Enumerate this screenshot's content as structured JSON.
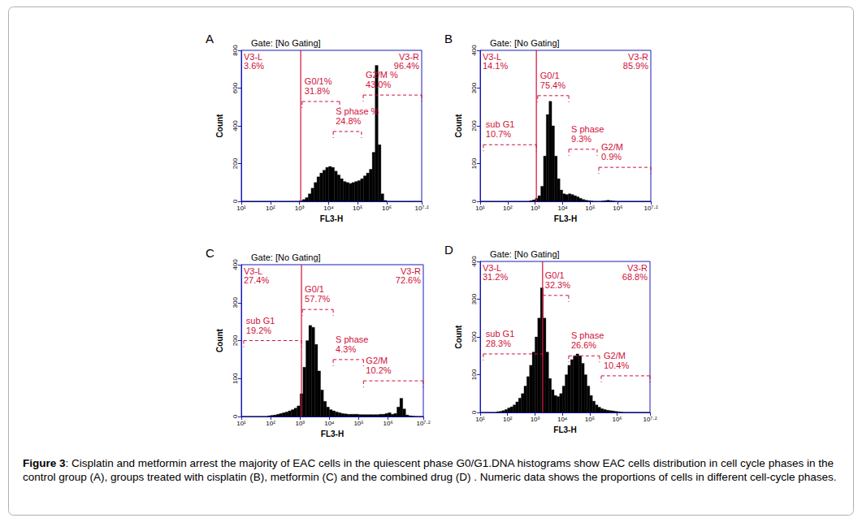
{
  "chart_data": [
    {
      "type": "histogram",
      "panel": "A",
      "title": "Gate: [No Gating]",
      "x_label": "FL3-H",
      "y_label": "Count",
      "log": "x",
      "grid": false,
      "color": "#000000",
      "xlim": [
        10,
        15850000
      ],
      "xticks": [
        {
          "value": 10,
          "label": "10¹"
        },
        {
          "value": 100,
          "label": "10²"
        },
        {
          "value": 1000,
          "label": "10³"
        },
        {
          "value": 10000,
          "label": "10⁴"
        },
        {
          "value": 100000,
          "label": "10⁵"
        },
        {
          "value": 1000000,
          "label": "10⁶"
        },
        {
          "value": 15850000,
          "label": "10⁷·²"
        }
      ],
      "ylim": [
        0,
        800
      ],
      "yticks": [
        0,
        200,
        400,
        600,
        800
      ],
      "bins": [
        10,
        12.59,
        15.85,
        19.95,
        25.12,
        31.62,
        39.81,
        50.12,
        63.1,
        79.43,
        100,
        125.9,
        158.5,
        199.5,
        251.2,
        316.2,
        398.1,
        501.2,
        631,
        794.3,
        1000,
        1259,
        1585,
        1995,
        2512,
        3162,
        3981,
        5012,
        6310,
        7943,
        10000,
        12590,
        15850,
        19950,
        25120,
        31620,
        39810,
        50120,
        63100,
        79430,
        100000,
        125900,
        158500,
        199500,
        251200,
        316200,
        398100,
        501200,
        631000,
        794300,
        1000000,
        1259000,
        1585000,
        1995000,
        2512000,
        3162000,
        3981000,
        5012000,
        6310000,
        7943000,
        10000000,
        12590000,
        15850000
      ],
      "counts": [
        0,
        0,
        0,
        0,
        0,
        0,
        0,
        0,
        0,
        0,
        0,
        0,
        0,
        0,
        0,
        0,
        0,
        0,
        0,
        0,
        3,
        10,
        20,
        40,
        70,
        100,
        130,
        150,
        165,
        180,
        185,
        180,
        160,
        140,
        120,
        105,
        100,
        95,
        100,
        105,
        110,
        120,
        135,
        150,
        170,
        260,
        720,
        300,
        40,
        5,
        0,
        0,
        0,
        0,
        0,
        0,
        0,
        0,
        0,
        0,
        0,
        0
      ],
      "gate": 1100,
      "gate_labels": [
        {
          "name": "V3-L",
          "label": "3.6%"
        },
        {
          "name": "V3-R",
          "label": "96.4%"
        }
      ],
      "regions": [
        {
          "name": "G0/1%",
          "label": "31.8%",
          "x": [
            1230,
            24000
          ],
          "y": 529
        },
        {
          "name": "S phase %",
          "label": "24.8%",
          "x": [
            14450,
            135000
          ],
          "y": 370
        },
        {
          "name": "G2/M %",
          "label": "43.0%",
          "x": [
            155000,
            15850000
          ],
          "y": 563
        }
      ]
    },
    {
      "type": "histogram",
      "panel": "B",
      "title": "Gate: [No Gating]",
      "x_label": "FL3-H",
      "y_label": "Count",
      "log": "x",
      "grid": false,
      "color": "#000000",
      "xlim": [
        10,
        15850000
      ],
      "xticks": [
        {
          "value": 10,
          "label": "10¹"
        },
        {
          "value": 100,
          "label": "10²"
        },
        {
          "value": 1000,
          "label": "10³"
        },
        {
          "value": 10000,
          "label": "10⁴"
        },
        {
          "value": 100000,
          "label": "10⁵"
        },
        {
          "value": 1000000,
          "label": "10⁶"
        },
        {
          "value": 15850000,
          "label": "10⁷·²"
        }
      ],
      "ylim": [
        0,
        400
      ],
      "yticks": [
        0,
        100,
        200,
        300,
        400
      ],
      "bins": [
        10,
        12.59,
        15.85,
        19.95,
        25.12,
        31.62,
        39.81,
        50.12,
        63.1,
        79.43,
        100,
        125.9,
        158.5,
        199.5,
        251.2,
        316.2,
        398.1,
        501.2,
        631,
        794.3,
        1000,
        1259,
        1585,
        1995,
        2512,
        3162,
        3981,
        5012,
        6310,
        7943,
        10000,
        12590,
        15850,
        19950,
        25120,
        31620,
        39810,
        50120,
        63100,
        79430,
        100000,
        125900,
        158500,
        199500,
        251200,
        316200,
        398100,
        501200,
        631000,
        794300,
        1000000,
        1259000,
        1585000,
        1995000,
        2512000,
        3162000,
        3981000,
        5012000,
        6310000,
        7943000,
        10000000,
        12590000,
        15850000
      ],
      "counts": [
        0,
        0,
        0,
        0,
        0,
        0,
        0,
        0,
        0,
        0,
        0,
        0,
        0,
        0,
        0,
        0,
        0,
        0,
        2,
        4,
        8,
        15,
        40,
        120,
        230,
        265,
        200,
        120,
        60,
        30,
        20,
        18,
        20,
        18,
        15,
        12,
        8,
        5,
        3,
        2,
        1,
        0,
        0,
        0,
        1,
        2,
        3,
        2,
        1,
        0,
        0,
        0,
        0,
        0,
        0,
        0,
        0,
        0,
        0,
        0,
        0,
        0
      ],
      "gate": 1100,
      "gate_labels": [
        {
          "name": "V3-L",
          "label": "14.1%"
        },
        {
          "name": "V3-R",
          "label": "85.9%"
        }
      ],
      "regions": [
        {
          "name": "sub G1",
          "label": "10.7%",
          "x": [
            13,
            1100
          ],
          "y": 150
        },
        {
          "name": "G0/1",
          "label": "75.4%",
          "x": [
            1230,
            16600
          ],
          "y": 280
        },
        {
          "name": "S phase",
          "label": "9.3%",
          "x": [
            16600,
            178000
          ],
          "y": 138
        },
        {
          "name": "G2/M",
          "label": "0.9%",
          "x": [
            204000,
            15850000
          ],
          "y": 90
        }
      ]
    },
    {
      "type": "histogram",
      "panel": "C",
      "title": "Gate: [No Gating]",
      "x_label": "FL3-H",
      "y_label": "Count",
      "log": "x",
      "grid": false,
      "color": "#000000",
      "xlim": [
        10,
        15850000
      ],
      "xticks": [
        {
          "value": 10,
          "label": "10¹"
        },
        {
          "value": 100,
          "label": "10²"
        },
        {
          "value": 1000,
          "label": "10³"
        },
        {
          "value": 10000,
          "label": "10⁴"
        },
        {
          "value": 100000,
          "label": "10⁵"
        },
        {
          "value": 1000000,
          "label": "10⁶"
        },
        {
          "value": 15850000,
          "label": "10⁷·²"
        }
      ],
      "ylim": [
        0,
        400
      ],
      "yticks": [
        0,
        100,
        200,
        300,
        400
      ],
      "bins": [
        10,
        12.59,
        15.85,
        19.95,
        25.12,
        31.62,
        39.81,
        50.12,
        63.1,
        79.43,
        100,
        125.9,
        158.5,
        199.5,
        251.2,
        316.2,
        398.1,
        501.2,
        631,
        794.3,
        1000,
        1259,
        1585,
        1995,
        2512,
        3162,
        3981,
        5012,
        6310,
        7943,
        10000,
        12590,
        15850,
        19950,
        25120,
        31620,
        39810,
        50120,
        63100,
        79430,
        100000,
        125900,
        158500,
        199500,
        251200,
        316200,
        398100,
        501200,
        631000,
        794300,
        1000000,
        1259000,
        1585000,
        1995000,
        2512000,
        3162000,
        3981000,
        5012000,
        6310000,
        7943000,
        10000000,
        12590000,
        15850000
      ],
      "counts": [
        0,
        0,
        0,
        0,
        0,
        0,
        0,
        0,
        0,
        2,
        3,
        4,
        6,
        8,
        10,
        12,
        15,
        18,
        22,
        28,
        60,
        130,
        200,
        240,
        235,
        190,
        120,
        70,
        40,
        25,
        18,
        15,
        12,
        10,
        8,
        7,
        6,
        6,
        6,
        6,
        5,
        5,
        5,
        5,
        5,
        5,
        5,
        6,
        6,
        8,
        10,
        6,
        8,
        25,
        48,
        20,
        4,
        2,
        1,
        0,
        0,
        0
      ],
      "gate": 1120,
      "gate_labels": [
        {
          "name": "V3-L",
          "label": "27.4%"
        },
        {
          "name": "V3-R",
          "label": "72.6%"
        }
      ],
      "regions": [
        {
          "name": "sub G1",
          "label": "19.2%",
          "x": [
            12,
            1120
          ],
          "y": 200
        },
        {
          "name": "G0/1",
          "label": "57.7%",
          "x": [
            1200,
            13500
          ],
          "y": 282
        },
        {
          "name": "S phase",
          "label": "4.3%",
          "x": [
            13500,
            145000
          ],
          "y": 150
        },
        {
          "name": "G2/M",
          "label": "10.2%",
          "x": [
            145000,
            15850000
          ],
          "y": 94
        }
      ]
    },
    {
      "type": "histogram",
      "panel": "D",
      "title": "Gate: [No Gating]",
      "x_label": "FL3-H",
      "y_label": "Count",
      "log": "x",
      "grid": false,
      "color": "#000000",
      "xlim": [
        10,
        15850000
      ],
      "xticks": [
        {
          "value": 10,
          "label": "10¹"
        },
        {
          "value": 100,
          "label": "10²"
        },
        {
          "value": 1000,
          "label": "10³"
        },
        {
          "value": 10000,
          "label": "10⁴"
        },
        {
          "value": 100000,
          "label": "10⁵"
        },
        {
          "value": 1000000,
          "label": "10⁶"
        },
        {
          "value": 15850000,
          "label": "10⁷·²"
        }
      ],
      "ylim": [
        0,
        400
      ],
      "yticks": [
        0,
        100,
        200,
        300,
        400
      ],
      "bins": [
        10,
        12.59,
        15.85,
        19.95,
        25.12,
        31.62,
        39.81,
        50.12,
        63.1,
        79.43,
        100,
        125.9,
        158.5,
        199.5,
        251.2,
        316.2,
        398.1,
        501.2,
        631,
        794.3,
        1000,
        1259,
        1585,
        1995,
        2512,
        3162,
        3981,
        5012,
        6310,
        7943,
        10000,
        12590,
        15850,
        19950,
        25120,
        31620,
        39810,
        50120,
        63100,
        79430,
        100000,
        125900,
        158500,
        199500,
        251200,
        316200,
        398100,
        501200,
        631000,
        794300,
        1000000,
        1259000,
        1585000,
        1995000,
        2512000,
        3162000,
        3981000,
        5012000,
        6310000,
        7943000,
        10000000,
        12590000,
        15850000
      ],
      "counts": [
        0,
        0,
        0,
        0,
        0,
        0,
        2,
        3,
        5,
        8,
        12,
        15,
        20,
        28,
        38,
        50,
        70,
        95,
        125,
        160,
        200,
        250,
        330,
        250,
        160,
        90,
        60,
        45,
        42,
        50,
        70,
        100,
        125,
        140,
        150,
        155,
        150,
        130,
        100,
        70,
        45,
        30,
        20,
        14,
        10,
        8,
        6,
        5,
        4,
        3,
        2,
        1,
        0,
        0,
        0,
        0,
        0,
        0,
        0,
        0,
        0,
        0
      ],
      "gate": 1900,
      "gate_labels": [
        {
          "name": "V3-L",
          "label": "31.2%"
        },
        {
          "name": "V3-R",
          "label": "68.8%"
        }
      ],
      "regions": [
        {
          "name": "sub G1",
          "label": "28.3%",
          "x": [
            13,
            1900
          ],
          "y": 155
        },
        {
          "name": "G0/1",
          "label": "32.3%",
          "x": [
            1900,
            17000
          ],
          "y": 310
        },
        {
          "name": "S phase",
          "label": "26.6%",
          "x": [
            17000,
            229000
          ],
          "y": 150
        },
        {
          "name": "G2/M",
          "label": "10.4%",
          "x": [
            263000,
            15850000
          ],
          "y": 97
        }
      ]
    }
  ],
  "caption": {
    "label": "Figure 3",
    "text": ": Cisplatin and metformin arrest the majority of EAC cells in the quiescent phase G0/G1.DNA histograms show EAC cells distribution in cell cycle phases in the control group (A), groups treated with cisplatin (B), metformin (C) and the combined drug (D) . Numeric data shows the proportions of cells in different cell-cycle phases."
  }
}
